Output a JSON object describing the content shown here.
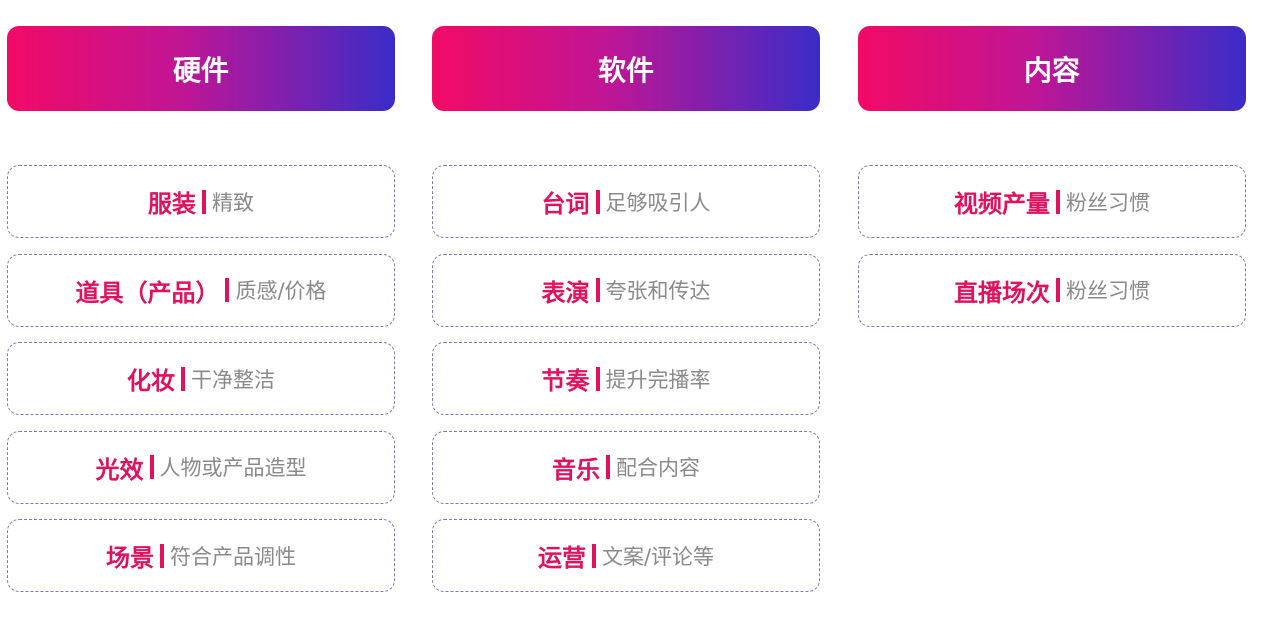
{
  "columns": [
    {
      "title": "硬件",
      "items": [
        {
          "key": "服装",
          "desc": "精致"
        },
        {
          "key": "道具（产品）",
          "desc": "质感/价格"
        },
        {
          "key": "化妆",
          "desc": "干净整洁"
        },
        {
          "key": "光效",
          "desc": "人物或产品造型"
        },
        {
          "key": "场景",
          "desc": "符合产品调性"
        }
      ]
    },
    {
      "title": "软件",
      "items": [
        {
          "key": "台词",
          "desc": "足够吸引人"
        },
        {
          "key": "表演",
          "desc": "夸张和传达"
        },
        {
          "key": "节奏",
          "desc": "提升完播率"
        },
        {
          "key": "音乐",
          "desc": "配合内容"
        },
        {
          "key": "运营",
          "desc": "文案/评论等"
        }
      ]
    },
    {
      "title": "内容",
      "items": [
        {
          "key": "视频产量",
          "desc": "粉丝习惯"
        },
        {
          "key": "直播场次",
          "desc": "粉丝习惯"
        }
      ]
    }
  ],
  "colors": {
    "accent": "#e0125f",
    "gradient_start": "#f20a66",
    "gradient_end": "#3a2cc8",
    "border": "#7f78c0"
  }
}
